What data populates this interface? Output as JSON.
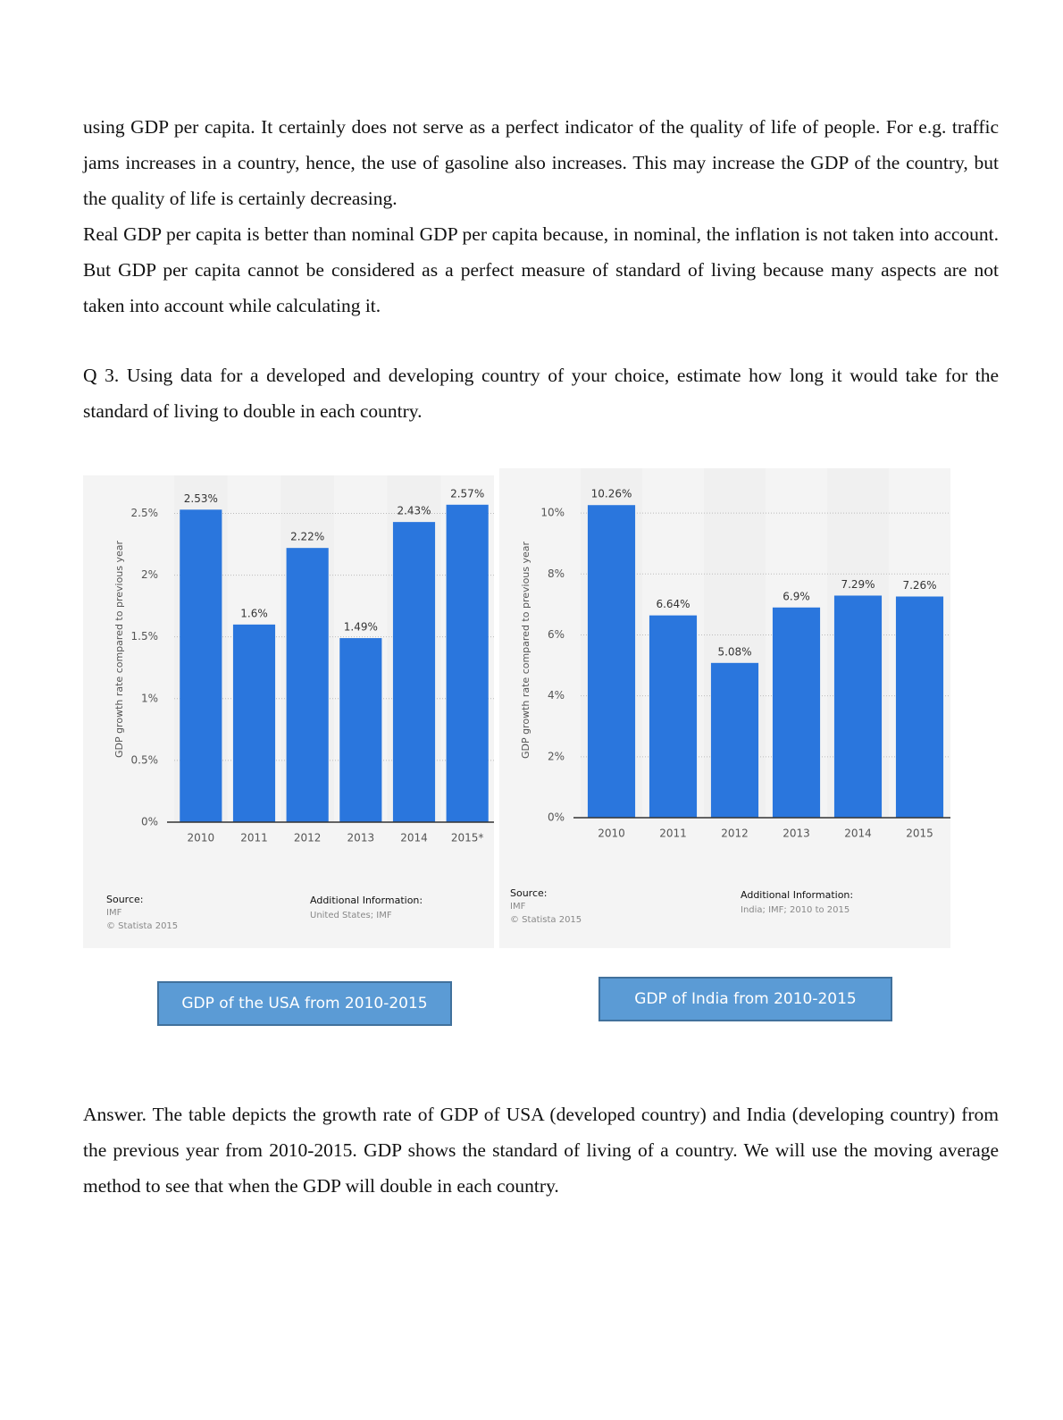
{
  "paragraphs": [
    "using GDP per capita. It certainly does not serve as a perfect indicator of the quality of life of people. For e.g. traffic jams increases in a country, hence, the use of gasoline also increases.  This may increase the GDP of the country, but the quality of life is certainly decreasing.",
    "Real GDP per capita is better than nominal GDP per capita because, in nominal, the inflation is not taken into account. But GDP per capita cannot be considered as a perfect measure of standard of living because many aspects are not taken into account while calculating it.",
    "Q 3. Using data for a developed and developing country of your choice, estimate how long it would take for the standard of living to double in each country.",
    "Answer. The table depicts the growth rate of GDP of USA (developed country) and India (developing country) from the previous year from 2010-2015. GDP shows the standard of living of a country. We will use the moving average method to see that when the GDP will double in each country."
  ],
  "captions": [
    "GDP of the USA from 2010-2015",
    "GDP of India from 2010-2015"
  ],
  "chart_data": [
    {
      "type": "bar",
      "ylabel": "GDP growth rate compared to previous year",
      "categories": [
        "2010",
        "2011",
        "2012",
        "2013",
        "2014",
        "2015*"
      ],
      "values": [
        2.53,
        1.6,
        2.22,
        1.49,
        2.43,
        2.57
      ],
      "value_labels": [
        "2.53%",
        "1.6%",
        "2.22%",
        "1.49%",
        "2.43%",
        "2.57%"
      ],
      "color": "#2a76dd",
      "ylim": [
        0,
        2.8
      ],
      "yticks": [
        {
          "value": 0,
          "label": "0%"
        },
        {
          "value": 0.5,
          "label": "0.5%"
        },
        {
          "value": 1,
          "label": "1%"
        },
        {
          "value": 1.5,
          "label": "1.5%"
        },
        {
          "value": 2,
          "label": "2%"
        },
        {
          "value": 2.5,
          "label": "2.5%"
        }
      ],
      "grid": true,
      "source_label": "Source:",
      "source": "IMF",
      "copyright": "© Statista 2015",
      "additional_info_label": "Additional Information:",
      "additional_info": "United States; IMF"
    },
    {
      "type": "bar",
      "ylabel": "GDP growth rate compared to previous year",
      "categories": [
        "2010",
        "2011",
        "2012",
        "2013",
        "2014",
        "2015"
      ],
      "values": [
        10.26,
        6.64,
        5.08,
        6.9,
        7.29,
        7.26
      ],
      "value_labels": [
        "10.26%",
        "6.64%",
        "5.08%",
        "6.9%",
        "7.29%",
        "7.26%"
      ],
      "color": "#2a76dd",
      "ylim": [
        0,
        11
      ],
      "yticks": [
        {
          "value": 0,
          "label": "0%"
        },
        {
          "value": 2,
          "label": "2%"
        },
        {
          "value": 4,
          "label": "4%"
        },
        {
          "value": 6,
          "label": "6%"
        },
        {
          "value": 8,
          "label": "8%"
        },
        {
          "value": 10,
          "label": "10%"
        }
      ],
      "grid": true,
      "source_label": "Source:",
      "source": "IMF",
      "copyright": "© Statista 2015",
      "additional_info_label": "Additional Information:",
      "additional_info": "India; IMF; 2010 to 2015"
    }
  ]
}
